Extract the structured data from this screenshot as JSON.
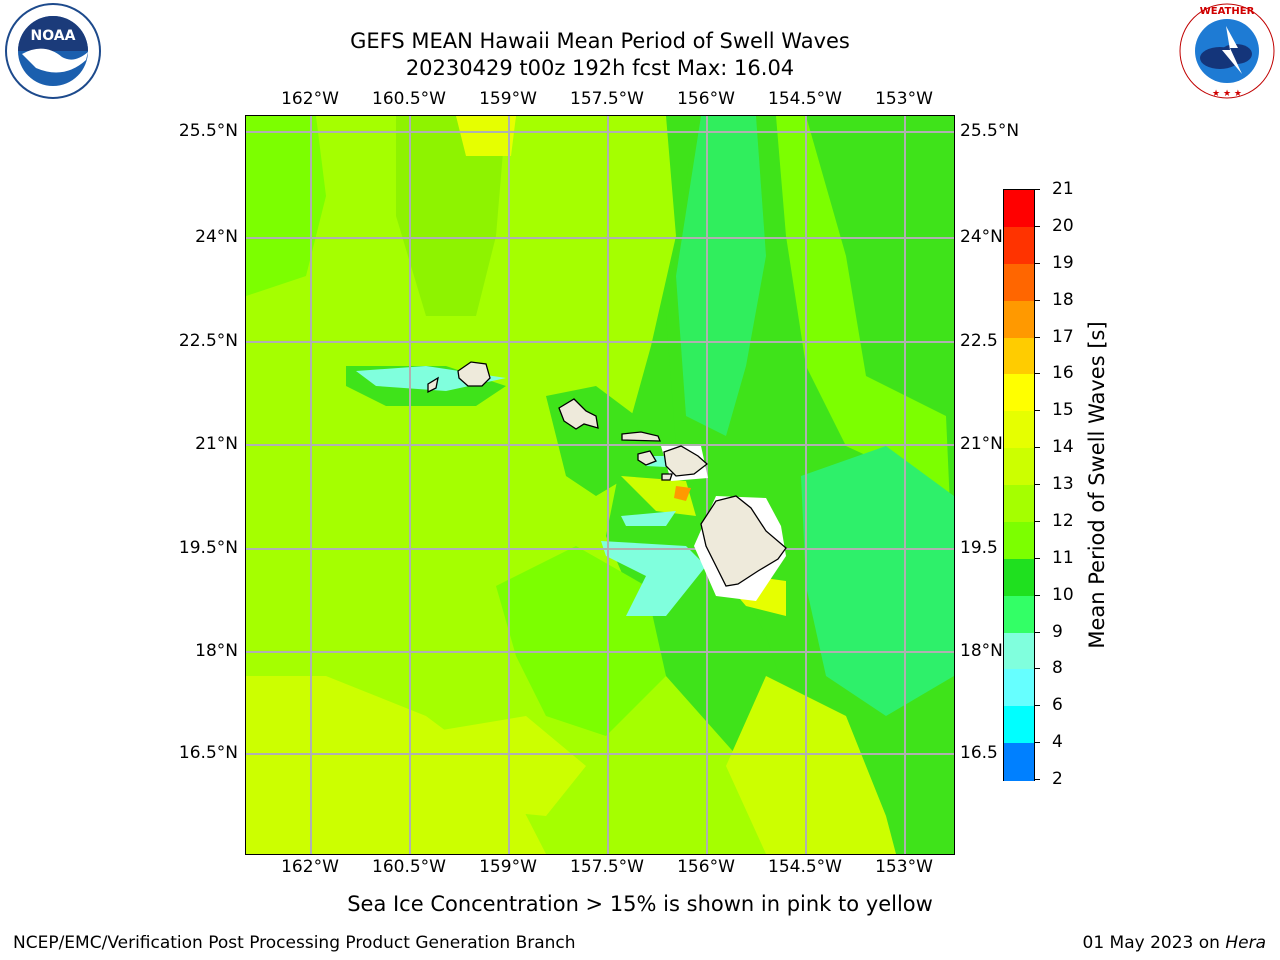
{
  "header": {
    "title_line1": "GEFS MEAN Hawaii Mean Period of Swell Waves",
    "title_line2": "20230429 t00z 192h fcst   Max: 16.04"
  },
  "logos": {
    "left": "NOAA",
    "left_ring_text": "NATIONAL OCEANIC AND ATMOSPHERIC ADMINISTRATION · U.S. DEPARTMENT OF COMMERCE",
    "right_ring_text": "NATIONAL WEATHER SERVICE"
  },
  "map": {
    "lon_labels": [
      "162°W",
      "160.5°W",
      "159°W",
      "157.5°W",
      "156°W",
      "154.5°W",
      "153°W"
    ],
    "lat_labels": [
      "25.5°N",
      "24°N",
      "22.5°N",
      "21°N",
      "19.5°N",
      "18°N",
      "16.5°N"
    ],
    "right_lat_labels": [
      "25.5°N",
      "24°N",
      "22.5",
      "21°N",
      "19.5",
      "18°N",
      "16.5"
    ]
  },
  "colorbar": {
    "label": "Mean Period of Swell Waves [s]",
    "ticks": [
      "21",
      "20",
      "19",
      "18",
      "17",
      "16",
      "15",
      "14",
      "13",
      "12",
      "11",
      "10",
      "9",
      "8",
      "6",
      "4",
      "2"
    ],
    "colors": [
      "#ff0000",
      "#ff3300",
      "#ff6600",
      "#ff9900",
      "#ffcc00",
      "#ffff00",
      "#e6ff00",
      "#ccff00",
      "#a5ff00",
      "#7cff00",
      "#1fe01f",
      "#33ff66",
      "#80ffdd",
      "#66ffff",
      "#00ffff",
      "#0080ff",
      "#0000ff"
    ]
  },
  "caption": "Sea Ice Concentration > 15% is shown in pink to yellow",
  "footer": {
    "left": "NCEP/EMC/Verification Post Processing Product Generation Branch",
    "right_date": "01 May 2023 on ",
    "right_host": "Hera"
  }
}
